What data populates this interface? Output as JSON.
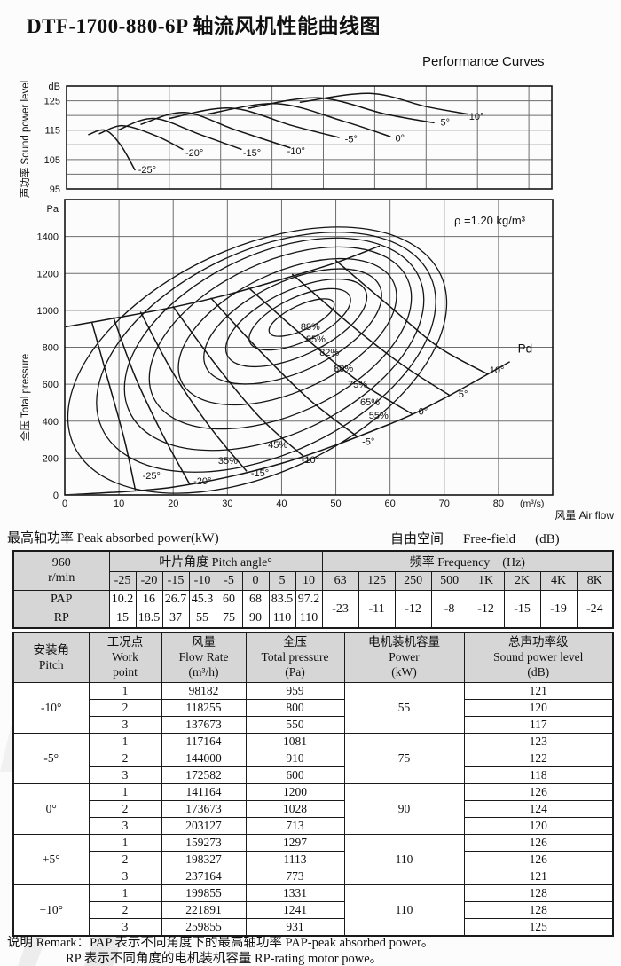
{
  "page": {
    "title": "DTF-1700-880-6P 轴流风机性能曲线图",
    "subtitle": "Performance Curves"
  },
  "captions": {
    "peak_power": "最高轴功率 Peak absorbed power(kW)",
    "free_field_cn": "自由空间",
    "free_field_en": "Free-field",
    "free_field_unit": "(dB)"
  },
  "remark": {
    "line1": "说明 Remark：PAP 表示不同角度下的最高轴功率 PAP-peak absorbed power。",
    "line2": "RP 表示不同角度的电机装机容量 RP-rating motor powe。"
  },
  "chart_data": [
    {
      "type": "line",
      "id": "sound-power-chart",
      "title": "",
      "ylabel": "声功率 Sound power level",
      "y_unit": "dB",
      "yticks": [
        95,
        105,
        115,
        125
      ],
      "ylim": [
        95,
        130
      ],
      "x_note": "shares air-flow axis of pressure chart, 10 m³/s per division",
      "grid": true,
      "curves": [
        {
          "label": "-25°",
          "points": [
            [
              4.3,
              113.5
            ],
            [
              7.5,
              115.0
            ],
            [
              10.5,
              110.0
            ],
            [
              13.3,
              101.5
            ]
          ],
          "label_at": [
            15.7,
            100.5
          ]
        },
        {
          "label": "-20°",
          "points": [
            [
              6.4,
              113.8
            ],
            [
              11.0,
              116.5
            ],
            [
              17.5,
              113.0
            ],
            [
              22.6,
              108.5
            ]
          ],
          "label_at": [
            24.9,
            106.2
          ]
        },
        {
          "label": "-15°",
          "points": [
            [
              10.0,
              115.0
            ],
            [
              17.0,
              119.0
            ],
            [
              26.0,
              113.5
            ],
            [
              34.0,
              108.5
            ]
          ],
          "label_at": [
            36.1,
            106.2
          ]
        },
        {
          "label": "-10°",
          "points": [
            [
              14.5,
              117.0
            ],
            [
              23.0,
              121.0
            ],
            [
              33.0,
              115.0
            ],
            [
              43.5,
              109.0
            ]
          ],
          "label_at": [
            44.7,
            106.8
          ]
        },
        {
          "label": "-5°",
          "points": [
            [
              20.0,
              119.0
            ],
            [
              32.0,
              122.5
            ],
            [
              44.0,
              116.5
            ],
            [
              53.0,
              112.5
            ]
          ],
          "label_at": [
            55.4,
            110.9
          ]
        },
        {
          "label": "0°",
          "points": [
            [
              27.5,
              120.5
            ],
            [
              41.0,
              124.0
            ],
            [
              54.0,
              118.0
            ],
            [
              63.0,
              112.8
            ]
          ],
          "label_at": [
            64.9,
            111.2
          ]
        },
        {
          "label": "5°",
          "points": [
            [
              35.5,
              122.5
            ],
            [
              49.0,
              126.0
            ],
            [
              62.0,
              120.5
            ],
            [
              71.5,
              117.5
            ]
          ],
          "label_at": [
            73.7,
            116.6
          ]
        },
        {
          "label": "10°",
          "points": [
            [
              45.5,
              124.5
            ],
            [
              59.0,
              127.5
            ],
            [
              70.0,
              123.0
            ],
            [
              78.0,
              120.5
            ]
          ],
          "label_at": [
            79.8,
            118.6
          ]
        }
      ]
    },
    {
      "type": "line",
      "id": "pressure-chart",
      "xlabel": "风量 Air flow",
      "x_unit": "(m³/s)",
      "ylabel": "全压 Total pressure",
      "y_unit": "Pa",
      "xticks": [
        0,
        10,
        20,
        30,
        40,
        50,
        60,
        70,
        80
      ],
      "xlim": [
        0,
        90
      ],
      "yticks": [
        0,
        200,
        400,
        600,
        800,
        1000,
        1200,
        1400
      ],
      "ylim": [
        0,
        1600
      ],
      "grid": true,
      "density_label": "ρ =1.20 kg/m³",
      "stall_line": [
        [
          0,
          910
        ],
        [
          10,
          962
        ],
        [
          20,
          1017
        ],
        [
          30,
          1085
        ],
        [
          40,
          1168
        ],
        [
          50,
          1258
        ],
        [
          58,
          1348
        ]
      ],
      "pitch_curves": [
        {
          "label": "-25°",
          "points": [
            [
              5,
              935
            ],
            [
              8,
              620
            ],
            [
              11,
              300
            ],
            [
              13,
              30
            ]
          ],
          "label_at": [
            16.0,
            87
          ]
        },
        {
          "label": "-20°",
          "points": [
            [
              9,
              960
            ],
            [
              13,
              640
            ],
            [
              18,
              330
            ],
            [
              23,
              60
            ]
          ],
          "label_at": [
            25.4,
            58
          ]
        },
        {
          "label": "-15°",
          "points": [
            [
              14,
              990
            ],
            [
              20,
              660
            ],
            [
              27,
              360
            ],
            [
              33.5,
              130
            ]
          ],
          "label_at": [
            36.0,
            100
          ]
        },
        {
          "label": "-10°",
          "points": [
            [
              20,
              1020
            ],
            [
              28,
              700
            ],
            [
              36,
              420
            ],
            [
              44,
              210
            ]
          ],
          "label_at": [
            45.3,
            172
          ]
        },
        {
          "label": "-5°",
          "points": [
            [
              27,
              1065
            ],
            [
              36,
              780
            ],
            [
              45,
              520
            ],
            [
              54,
              315
            ]
          ],
          "label_at": [
            56.0,
            272
          ]
        },
        {
          "label": "0°",
          "points": [
            [
              34,
              1120
            ],
            [
              44,
              860
            ],
            [
              54,
              620
            ],
            [
              64,
              440
            ]
          ],
          "label_at": [
            66.1,
            436
          ]
        },
        {
          "label": "5°",
          "points": [
            [
              42,
              1195
            ],
            [
              52,
              940
            ],
            [
              62,
              710
            ],
            [
              71,
              540
            ]
          ],
          "label_at": [
            73.5,
            528
          ]
        },
        {
          "label": "10°",
          "points": [
            [
              50,
              1270
            ],
            [
              60,
              1020
            ],
            [
              69,
              800
            ],
            [
              78,
              655
            ]
          ],
          "label_at": [
            79.7,
            658
          ]
        }
      ],
      "pd_curve": {
        "label": "Pd",
        "points": [
          [
            0,
            0
          ],
          [
            20,
            43
          ],
          [
            40,
            171
          ],
          [
            60,
            385
          ],
          [
            70,
            524
          ],
          [
            82,
            720
          ]
        ],
        "label_at": [
          84.9,
          771
        ]
      },
      "efficiency_contours": [
        {
          "label": "88%",
          "label_at": [
            45.3,
            894
          ]
        },
        {
          "label": "85%",
          "label_at": [
            46.3,
            827
          ]
        },
        {
          "label": "82%",
          "label_at": [
            48.8,
            755
          ]
        },
        {
          "label": "80%",
          "label_at": [
            51.4,
            668
          ]
        },
        {
          "label": "75%",
          "label_at": [
            54.0,
            581
          ]
        },
        {
          "label": "65%",
          "label_at": [
            56.3,
            485
          ]
        },
        {
          "label": "55%",
          "label_at": [
            57.9,
            413
          ]
        },
        {
          "label": "45%",
          "label_at": [
            39.3,
            254
          ]
        },
        {
          "label": "35%",
          "label_at": [
            30.1,
            168
          ]
        }
      ]
    }
  ],
  "power_table": {
    "corner_line1": "960",
    "corner_line2": "r/min",
    "pitch_header": "叶片角度 Pitch angle°",
    "freq_header": "频率 Frequency",
    "freq_unit": "(Hz)",
    "pitch_cols": [
      "-25",
      "-20",
      "-15",
      "-10",
      "-5",
      "0",
      "5",
      "10"
    ],
    "freq_cols": [
      "63",
      "125",
      "250",
      "500",
      "1K",
      "2K",
      "4K",
      "8K"
    ],
    "rows": [
      {
        "label": "PAP",
        "values": [
          "10.2",
          "16",
          "26.7",
          "45.3",
          "60",
          "68",
          "83.5",
          "97.2"
        ]
      },
      {
        "label": "RP",
        "values": [
          "15",
          "18.5",
          "37",
          "55",
          "75",
          "90",
          "110",
          "110"
        ]
      }
    ],
    "freq_values": [
      "-23",
      "-11",
      "-12",
      "-8",
      "-12",
      "-15",
      "-19",
      "-24"
    ]
  },
  "duty_table": {
    "headers": [
      [
        "安装角",
        "Pitch"
      ],
      [
        "工况点",
        "Work",
        "point"
      ],
      [
        "风量",
        "Flow Rate",
        "(m³/h)"
      ],
      [
        "全压",
        "Total pressure",
        "(Pa)"
      ],
      [
        "电机装机容量",
        "Power",
        "(kW)"
      ],
      [
        "总声功率级",
        "Sound power level",
        "(dB)"
      ]
    ],
    "groups": [
      {
        "pitch": "-10°",
        "power": "55",
        "rows": [
          [
            "1",
            "98182",
            "959",
            "121"
          ],
          [
            "2",
            "118255",
            "800",
            "120"
          ],
          [
            "3",
            "137673",
            "550",
            "117"
          ]
        ]
      },
      {
        "pitch": "-5°",
        "power": "75",
        "rows": [
          [
            "1",
            "117164",
            "1081",
            "123"
          ],
          [
            "2",
            "144000",
            "910",
            "122"
          ],
          [
            "3",
            "172582",
            "600",
            "118"
          ]
        ]
      },
      {
        "pitch": "0°",
        "power": "90",
        "rows": [
          [
            "1",
            "141164",
            "1200",
            "126"
          ],
          [
            "2",
            "173673",
            "1028",
            "124"
          ],
          [
            "3",
            "203127",
            "713",
            "120"
          ]
        ]
      },
      {
        "pitch": "+5°",
        "power": "110",
        "rows": [
          [
            "1",
            "159273",
            "1297",
            "126"
          ],
          [
            "2",
            "198327",
            "1113",
            "126"
          ],
          [
            "3",
            "237164",
            "773",
            "121"
          ]
        ]
      },
      {
        "pitch": "+10°",
        "power": "110",
        "rows": [
          [
            "1",
            "199855",
            "1331",
            "128"
          ],
          [
            "2",
            "221891",
            "1241",
            "128"
          ],
          [
            "3",
            "259855",
            "931",
            "125"
          ]
        ]
      }
    ]
  }
}
